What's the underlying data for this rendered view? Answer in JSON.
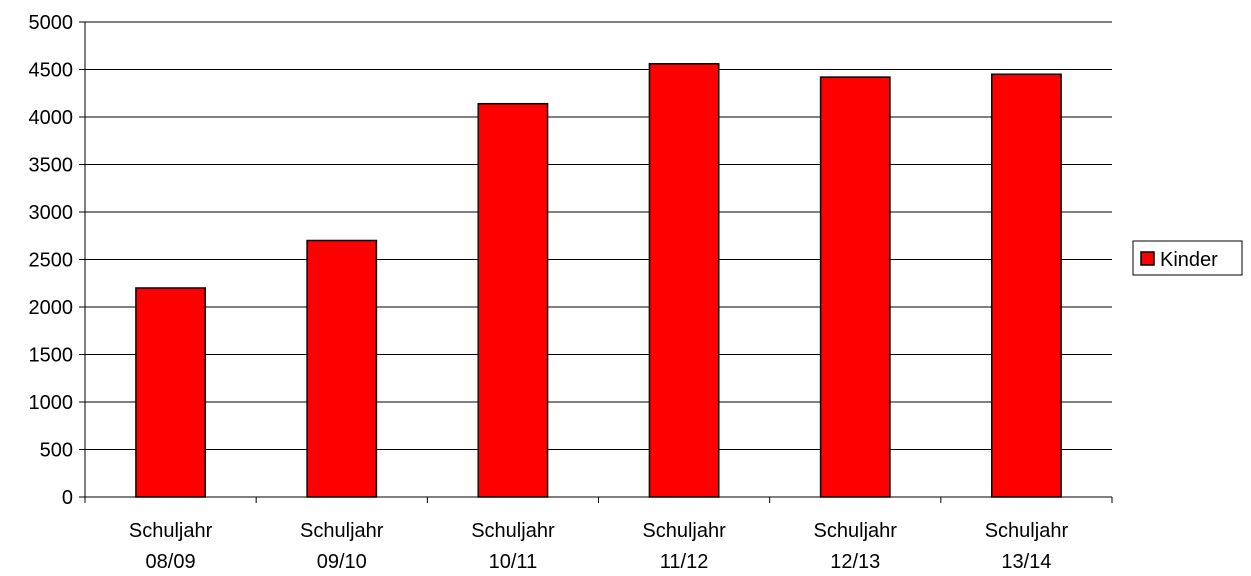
{
  "chart_data": {
    "type": "bar",
    "categories": [
      [
        "Schuljahr",
        "08/09"
      ],
      [
        "Schuljahr",
        "09/10"
      ],
      [
        "Schuljahr",
        "10/11"
      ],
      [
        "Schuljahr",
        "11/12"
      ],
      [
        "Schuljahr",
        "12/13"
      ],
      [
        "Schuljahr",
        "13/14"
      ]
    ],
    "series": [
      {
        "name": "Kinder",
        "color": "#ff0000",
        "values": [
          2200,
          2700,
          4140,
          4560,
          4420,
          4450
        ]
      }
    ],
    "ylim": [
      0,
      5000
    ],
    "y_ticks": [
      "0",
      "500",
      "1000",
      "1500",
      "2000",
      "2500",
      "3000",
      "3500",
      "4000",
      "4500",
      "5000"
    ],
    "grid": true,
    "legend_position": "right"
  }
}
